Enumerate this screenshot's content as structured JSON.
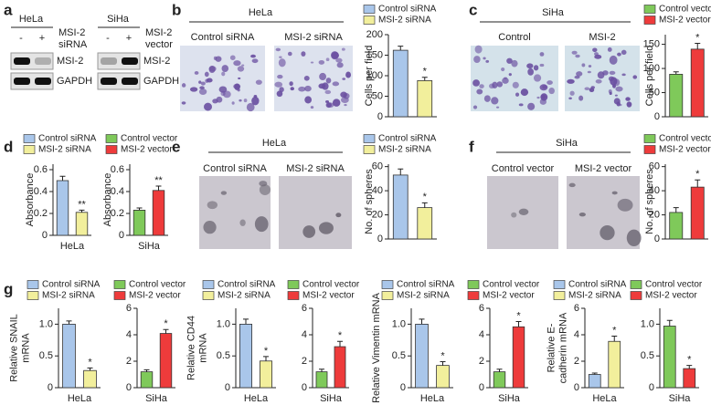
{
  "panel_labels": [
    "a",
    "b",
    "c",
    "d",
    "e",
    "f",
    "g"
  ],
  "blots": [
    {
      "cell": "HeLa",
      "lanes": [
        "-",
        "+"
      ],
      "treatment": [
        "MSI-2",
        "siRNA"
      ],
      "bands": [
        "MSI-2",
        "GAPDH"
      ]
    },
    {
      "cell": "SiHa",
      "lanes": [
        "-",
        "+"
      ],
      "treatment": [
        "MSI-2",
        "vector"
      ],
      "bands": [
        "MSI-2",
        "GAPDH"
      ]
    }
  ],
  "micrographs": [
    {
      "title": "HeLa",
      "labels": [
        "Control siRNA",
        "MSI-2 siRNA"
      ]
    },
    {
      "title": "SiHa",
      "labels": [
        "Control",
        "MSI-2"
      ]
    },
    {
      "title": "HeLa",
      "labels": [
        "Control siRNA",
        "MSI-2 siRNA"
      ]
    },
    {
      "title": "SiHa",
      "labels": [
        "Control vector",
        "MSI-2 vector"
      ]
    }
  ],
  "chart_data": [
    {
      "type": "bar",
      "ylabel": [
        "Cells per field"
      ],
      "series": [
        {
          "name": "Control siRNA",
          "color": "#a9c6ea",
          "values": [
            162
          ],
          "errors": [
            10
          ]
        },
        {
          "name": "MSI-2 siRNA",
          "color": "#f2ef9c",
          "values": [
            88
          ],
          "errors": [
            8
          ]
        }
      ],
      "significance": "*",
      "ylim": [
        0,
        200
      ],
      "yticks": [
        0,
        50,
        100,
        150,
        200
      ]
    },
    {
      "type": "bar",
      "ylabel": [
        "Cells per field"
      ],
      "series": [
        {
          "name": "Control vector",
          "color": "#7fc95a",
          "values": [
            88
          ],
          "errors": [
            5
          ]
        },
        {
          "name": "MSI-2 vector",
          "color": "#ee3b3b",
          "values": [
            140
          ],
          "errors": [
            12
          ]
        }
      ],
      "significance": "*",
      "ylim": [
        0,
        170
      ],
      "yticks": [
        0,
        50,
        100,
        150
      ]
    },
    {
      "type": "bar",
      "ylabel": [
        "Absorbance"
      ],
      "xlabel": "HeLa",
      "series": [
        {
          "name": "Control siRNA",
          "color": "#a9c6ea",
          "values": [
            0.5
          ],
          "errors": [
            0.04
          ]
        },
        {
          "name": "MSI-2 siRNA",
          "color": "#f2ef9c",
          "values": [
            0.21
          ],
          "errors": [
            0.02
          ]
        }
      ],
      "significance": "**",
      "ylim": [
        0,
        0.65
      ],
      "yticks": [
        0,
        0.2,
        0.4,
        0.6
      ]
    },
    {
      "type": "bar",
      "ylabel": [
        "Absorbance"
      ],
      "xlabel": "SiHa",
      "series": [
        {
          "name": "Control vector",
          "color": "#7fc95a",
          "values": [
            0.23
          ],
          "errors": [
            0.02
          ]
        },
        {
          "name": "MSI-2 vector",
          "color": "#ee3b3b",
          "values": [
            0.41
          ],
          "errors": [
            0.04
          ]
        }
      ],
      "significance": "**",
      "ylim": [
        0,
        0.65
      ],
      "yticks": [
        0,
        0.2,
        0.4,
        0.6
      ]
    },
    {
      "type": "bar",
      "ylabel": [
        "No. of spheres"
      ],
      "series": [
        {
          "name": "Control siRNA",
          "color": "#a9c6ea",
          "values": [
            53
          ],
          "errors": [
            5
          ]
        },
        {
          "name": "MSI-2 siRNA",
          "color": "#f2ef9c",
          "values": [
            26
          ],
          "errors": [
            4
          ]
        }
      ],
      "significance": "*",
      "ylim": [
        0,
        62
      ],
      "yticks": [
        0,
        20,
        40,
        60
      ]
    },
    {
      "type": "bar",
      "ylabel": [
        "No. of spheres"
      ],
      "series": [
        {
          "name": "Control vector",
          "color": "#7fc95a",
          "values": [
            22
          ],
          "errors": [
            4
          ]
        },
        {
          "name": "MSI-2 vector",
          "color": "#ee3b3b",
          "values": [
            43
          ],
          "errors": [
            6
          ]
        }
      ],
      "significance": "*",
      "ylim": [
        0,
        62
      ],
      "yticks": [
        0,
        20,
        40,
        60
      ]
    },
    {
      "type": "bar",
      "ylabel": [
        "Relative SNAIL",
        "mRNA"
      ],
      "xlabel": "HeLa",
      "series": [
        {
          "name": "Control siRNA",
          "color": "#a9c6ea",
          "values": [
            1.0
          ],
          "errors": [
            0.05
          ]
        },
        {
          "name": "MSI-2 siRNA",
          "color": "#f2ef9c",
          "values": [
            0.27
          ],
          "errors": [
            0.04
          ]
        }
      ],
      "significance": "*",
      "ylim": [
        0,
        1.25
      ],
      "yticks": [
        0,
        0.5,
        {
          "value": 1,
          "label": "1.0"
        }
      ]
    },
    {
      "type": "bar",
      "xlabel": "SiHa",
      "series": [
        {
          "name": "Control vector",
          "color": "#7fc95a",
          "values": [
            1.2
          ],
          "errors": [
            0.15
          ]
        },
        {
          "name": "MSI-2 vector",
          "color": "#ee3b3b",
          "values": [
            4.1
          ],
          "errors": [
            0.3
          ]
        }
      ],
      "significance": "*",
      "ylim": [
        0,
        6
      ],
      "yticks": [
        0,
        2,
        4,
        6
      ]
    },
    {
      "type": "bar",
      "ylabel": [
        "Relative CD44",
        "mRNA"
      ],
      "xlabel": "HeLa",
      "series": [
        {
          "name": "Control siRNA",
          "color": "#a9c6ea",
          "values": [
            1.0
          ],
          "errors": [
            0.08
          ]
        },
        {
          "name": "MSI-2 siRNA",
          "color": "#f2ef9c",
          "values": [
            0.42
          ],
          "errors": [
            0.07
          ]
        }
      ],
      "significance": "*",
      "ylim": [
        0,
        1.25
      ],
      "yticks": [
        0,
        0.5,
        {
          "value": 1,
          "label": "1.0"
        }
      ]
    },
    {
      "type": "bar",
      "xlabel": "SiHa",
      "series": [
        {
          "name": "Control vector",
          "color": "#7fc95a",
          "values": [
            1.2
          ],
          "errors": [
            0.2
          ]
        },
        {
          "name": "MSI-2 vector",
          "color": "#ee3b3b",
          "values": [
            3.1
          ],
          "errors": [
            0.4
          ]
        }
      ],
      "significance": "*",
      "ylim": [
        0,
        6
      ],
      "yticks": [
        0,
        2,
        4,
        6
      ]
    },
    {
      "type": "bar",
      "ylabel": [
        "Relative Vimentin mRNA"
      ],
      "xlabel": "HeLa",
      "series": [
        {
          "name": "Control siRNA",
          "color": "#a9c6ea",
          "values": [
            1.0
          ],
          "errors": [
            0.08
          ]
        },
        {
          "name": "MSI-2 siRNA",
          "color": "#f2ef9c",
          "values": [
            0.35
          ],
          "errors": [
            0.06
          ]
        }
      ],
      "significance": "*",
      "ylim": [
        0,
        1.25
      ],
      "yticks": [
        0,
        0.5,
        {
          "value": 1,
          "label": "1.0"
        }
      ]
    },
    {
      "type": "bar",
      "xlabel": "SiHa",
      "series": [
        {
          "name": "Control vector",
          "color": "#7fc95a",
          "values": [
            1.2
          ],
          "errors": [
            0.2
          ]
        },
        {
          "name": "MSI-2 vector",
          "color": "#ee3b3b",
          "values": [
            4.6
          ],
          "errors": [
            0.4
          ]
        }
      ],
      "significance": "*",
      "ylim": [
        0,
        6
      ],
      "yticks": [
        0,
        2,
        4,
        6
      ]
    },
    {
      "type": "bar",
      "ylabel": [
        "Relative E-",
        "cadherin mRNA"
      ],
      "xlabel": "HeLa",
      "series": [
        {
          "name": "Control siRNA",
          "color": "#a9c6ea",
          "values": [
            1.0
          ],
          "errors": [
            0.1
          ]
        },
        {
          "name": "MSI-2 siRNA",
          "color": "#f2ef9c",
          "values": [
            3.5
          ],
          "errors": [
            0.4
          ]
        }
      ],
      "significance": "*",
      "ylim": [
        0,
        6
      ],
      "yticks": [
        0,
        2,
        4,
        6
      ]
    },
    {
      "type": "bar",
      "xlabel": "SiHa",
      "series": [
        {
          "name": "Control vector",
          "color": "#7fc95a",
          "values": [
            0.97
          ],
          "errors": [
            0.09
          ]
        },
        {
          "name": "MSI-2 vector",
          "color": "#ee3b3b",
          "values": [
            0.3
          ],
          "errors": [
            0.05
          ]
        }
      ],
      "significance": "*",
      "ylim": [
        0,
        1.25
      ],
      "yticks": [
        0,
        0.5,
        {
          "value": 1,
          "label": "1.0"
        }
      ]
    }
  ]
}
